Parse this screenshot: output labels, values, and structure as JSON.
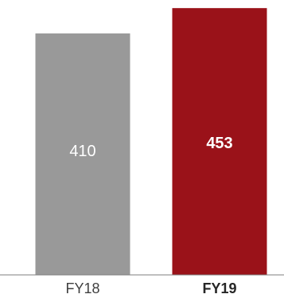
{
  "chart_data": {
    "type": "bar",
    "categories": [
      "FY18",
      "FY19"
    ],
    "values": [
      410,
      453
    ],
    "data_labels": [
      "410",
      "453"
    ],
    "title": "",
    "xlabel": "",
    "ylabel": "",
    "ylim": [
      0,
      460
    ],
    "grid": false,
    "legend": "none",
    "colors": [
      "#999999",
      "#9a1219"
    ],
    "bold_categories": [
      "FY19"
    ],
    "axis_color": "#7f7f7f"
  }
}
